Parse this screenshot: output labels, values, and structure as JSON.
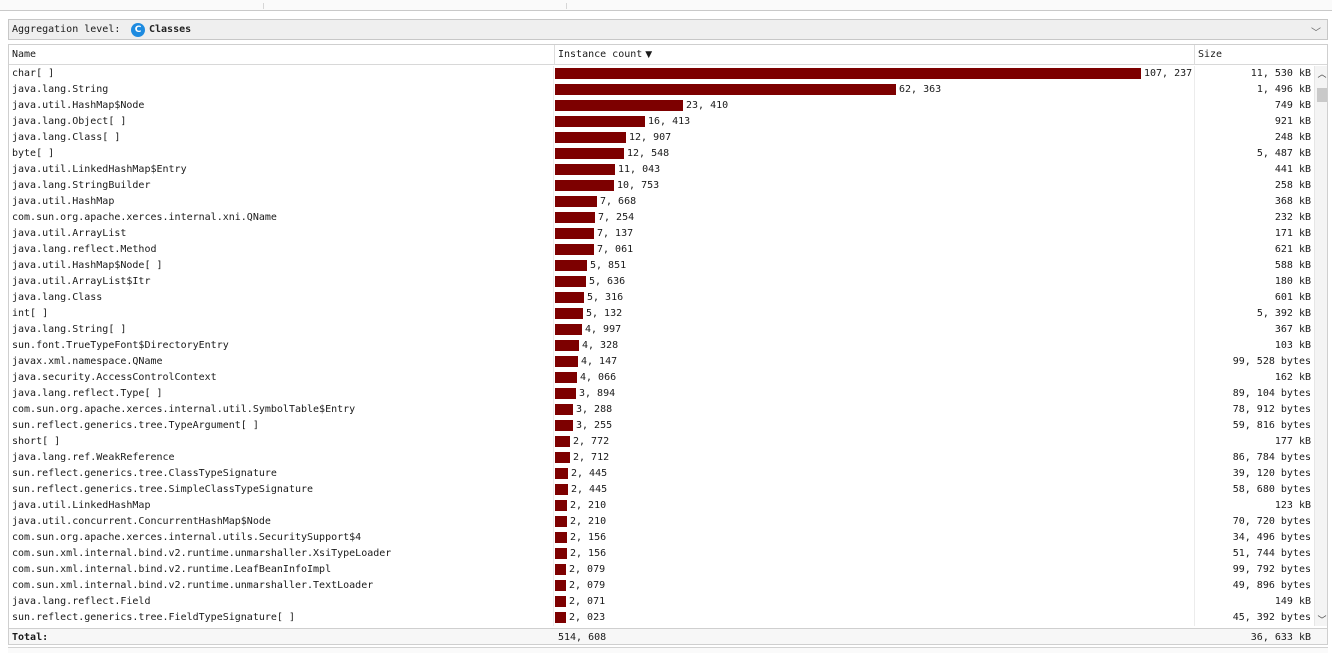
{
  "aggregation": {
    "label": "Aggregation level:",
    "icon": "class-icon",
    "icon_glyph": "C",
    "value": "Classes"
  },
  "columns": {
    "name": "Name",
    "count": "Instance count",
    "count_sort": "▼",
    "size": "Size"
  },
  "max_count": 107237,
  "rows": [
    {
      "name": "char[ ]",
      "count": 107237,
      "count_label": "107, 237",
      "size": "11, 530 kB"
    },
    {
      "name": "java.lang.String",
      "count": 62363,
      "count_label": "62, 363",
      "size": "1, 496 kB"
    },
    {
      "name": "java.util.HashMap$Node",
      "count": 23410,
      "count_label": "23, 410",
      "size": "749 kB"
    },
    {
      "name": "java.lang.Object[ ]",
      "count": 16413,
      "count_label": "16, 413",
      "size": "921 kB"
    },
    {
      "name": "java.lang.Class[ ]",
      "count": 12907,
      "count_label": "12, 907",
      "size": "248 kB"
    },
    {
      "name": "byte[ ]",
      "count": 12548,
      "count_label": "12, 548",
      "size": "5, 487 kB"
    },
    {
      "name": "java.util.LinkedHashMap$Entry",
      "count": 11043,
      "count_label": "11, 043",
      "size": "441 kB"
    },
    {
      "name": "java.lang.StringBuilder",
      "count": 10753,
      "count_label": "10, 753",
      "size": "258 kB"
    },
    {
      "name": "java.util.HashMap",
      "count": 7668,
      "count_label": "7, 668",
      "size": "368 kB"
    },
    {
      "name": "com.sun.org.apache.xerces.internal.xni.QName",
      "count": 7254,
      "count_label": "7, 254",
      "size": "232 kB"
    },
    {
      "name": "java.util.ArrayList",
      "count": 7137,
      "count_label": "7, 137",
      "size": "171 kB"
    },
    {
      "name": "java.lang.reflect.Method",
      "count": 7061,
      "count_label": "7, 061",
      "size": "621 kB"
    },
    {
      "name": "java.util.HashMap$Node[ ]",
      "count": 5851,
      "count_label": "5, 851",
      "size": "588 kB"
    },
    {
      "name": "java.util.ArrayList$Itr",
      "count": 5636,
      "count_label": "5, 636",
      "size": "180 kB"
    },
    {
      "name": "java.lang.Class",
      "count": 5316,
      "count_label": "5, 316",
      "size": "601 kB"
    },
    {
      "name": "int[ ]",
      "count": 5132,
      "count_label": "5, 132",
      "size": "5, 392 kB"
    },
    {
      "name": "java.lang.String[ ]",
      "count": 4997,
      "count_label": "4, 997",
      "size": "367 kB"
    },
    {
      "name": "sun.font.TrueTypeFont$DirectoryEntry",
      "count": 4328,
      "count_label": "4, 328",
      "size": "103 kB"
    },
    {
      "name": "javax.xml.namespace.QName",
      "count": 4147,
      "count_label": "4, 147",
      "size": "99, 528 bytes"
    },
    {
      "name": "java.security.AccessControlContext",
      "count": 4066,
      "count_label": "4, 066",
      "size": "162 kB"
    },
    {
      "name": "java.lang.reflect.Type[ ]",
      "count": 3894,
      "count_label": "3, 894",
      "size": "89, 104 bytes"
    },
    {
      "name": "com.sun.org.apache.xerces.internal.util.SymbolTable$Entry",
      "count": 3288,
      "count_label": "3, 288",
      "size": "78, 912 bytes"
    },
    {
      "name": "sun.reflect.generics.tree.TypeArgument[ ]",
      "count": 3255,
      "count_label": "3, 255",
      "size": "59, 816 bytes"
    },
    {
      "name": "short[ ]",
      "count": 2772,
      "count_label": "2, 772",
      "size": "177 kB"
    },
    {
      "name": "java.lang.ref.WeakReference",
      "count": 2712,
      "count_label": "2, 712",
      "size": "86, 784 bytes"
    },
    {
      "name": "sun.reflect.generics.tree.ClassTypeSignature",
      "count": 2445,
      "count_label": "2, 445",
      "size": "39, 120 bytes"
    },
    {
      "name": "sun.reflect.generics.tree.SimpleClassTypeSignature",
      "count": 2445,
      "count_label": "2, 445",
      "size": "58, 680 bytes"
    },
    {
      "name": "java.util.LinkedHashMap",
      "count": 2210,
      "count_label": "2, 210",
      "size": "123 kB"
    },
    {
      "name": "java.util.concurrent.ConcurrentHashMap$Node",
      "count": 2210,
      "count_label": "2, 210",
      "size": "70, 720 bytes"
    },
    {
      "name": "com.sun.org.apache.xerces.internal.utils.SecuritySupport$4",
      "count": 2156,
      "count_label": "2, 156",
      "size": "34, 496 bytes"
    },
    {
      "name": "com.sun.xml.internal.bind.v2.runtime.unmarshaller.XsiTypeLoader",
      "count": 2156,
      "count_label": "2, 156",
      "size": "51, 744 bytes"
    },
    {
      "name": "com.sun.xml.internal.bind.v2.runtime.LeafBeanInfoImpl",
      "count": 2079,
      "count_label": "2, 079",
      "size": "99, 792 bytes"
    },
    {
      "name": "com.sun.xml.internal.bind.v2.runtime.unmarshaller.TextLoader",
      "count": 2079,
      "count_label": "2, 079",
      "size": "49, 896 bytes"
    },
    {
      "name": "java.lang.reflect.Field",
      "count": 2071,
      "count_label": "2, 071",
      "size": "149 kB"
    },
    {
      "name": "sun.reflect.generics.tree.FieldTypeSignature[ ]",
      "count": 2023,
      "count_label": "2, 023",
      "size": "45, 392 bytes"
    }
  ],
  "total": {
    "label": "Total:",
    "count": "514, 608",
    "size": "36, 633 kB"
  },
  "colors": {
    "bar": "#7d0000",
    "accent": "#1e8be0"
  }
}
